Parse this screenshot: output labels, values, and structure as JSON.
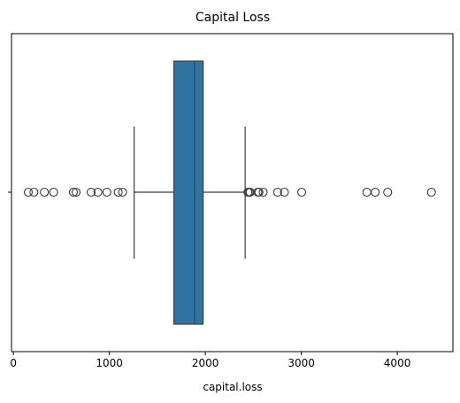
{
  "chart_data": {
    "type": "boxplot",
    "title": "Capital Loss",
    "xlabel": "capital.loss",
    "ylabel": "",
    "xlim": [
      -20,
      4580
    ],
    "x_ticks": [
      0,
      1000,
      2000,
      3000,
      4000
    ],
    "x_tick_labels": [
      "0",
      "1000",
      "2000",
      "3000",
      "4000"
    ],
    "box": {
      "whisker_low": 1258,
      "q1": 1672,
      "median": 1887,
      "q3": 1977,
      "whisker_high": 2415
    },
    "outliers": [
      155,
      213,
      323,
      419,
      625,
      653,
      810,
      880,
      974,
      1092,
      1138,
      2444,
      2457,
      2467,
      2547,
      2559,
      2603,
      2754,
      2824,
      3004,
      3683,
      3770,
      3900,
      4356
    ],
    "colors": {
      "box_fill": "#3274a1",
      "lines": "#3d3d3d"
    }
  }
}
